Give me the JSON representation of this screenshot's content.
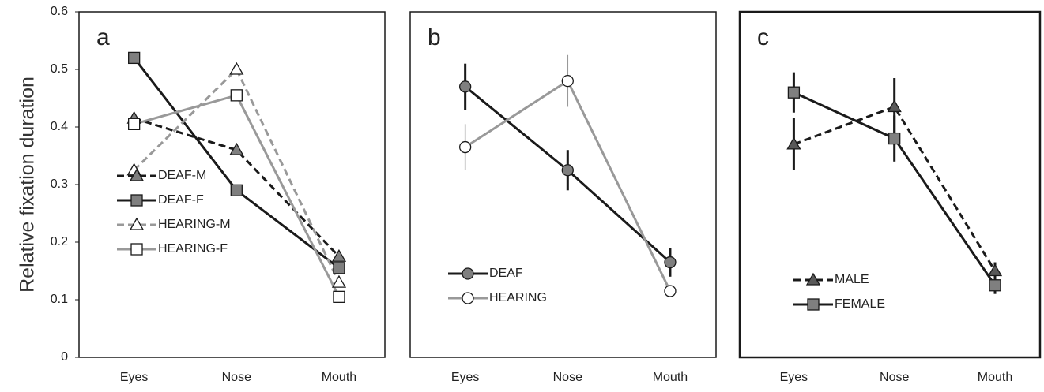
{
  "chart_data": [
    {
      "type": "line",
      "label": "a",
      "ylabel": "Relative fixation duration",
      "categories": [
        "Eyes",
        "Nose",
        "Mouth"
      ],
      "ylim": [
        0,
        0.6
      ],
      "yticks": [
        0,
        0.1,
        0.2,
        0.3,
        0.4,
        0.5,
        0.6
      ],
      "legend": "lower left",
      "series": [
        {
          "name": "DEAF-M",
          "color": "#1a1a1a",
          "dashed": true,
          "marker": "triangle",
          "marker_fill": "#7f7f7f",
          "values": [
            0.415,
            0.36,
            0.175
          ]
        },
        {
          "name": "DEAF-F",
          "color": "#1a1a1a",
          "dashed": false,
          "marker": "square",
          "marker_fill": "#7f7f7f",
          "values": [
            0.52,
            0.29,
            0.155
          ]
        },
        {
          "name": "HEARING-M",
          "color": "#999999",
          "dashed": true,
          "marker": "triangle",
          "marker_fill": "#ffffff",
          "values": [
            0.325,
            0.5,
            0.13
          ]
        },
        {
          "name": "HEARING-F",
          "color": "#999999",
          "dashed": false,
          "marker": "square",
          "marker_fill": "#ffffff",
          "values": [
            0.405,
            0.455,
            0.105
          ]
        }
      ]
    },
    {
      "type": "line",
      "label": "b",
      "categories": [
        "Eyes",
        "Nose",
        "Mouth"
      ],
      "ylim": [
        0,
        0.6
      ],
      "legend": "center left",
      "series": [
        {
          "name": "DEAF",
          "color": "#1a1a1a",
          "dashed": false,
          "marker": "circle",
          "marker_fill": "#7f7f7f",
          "values": [
            0.47,
            0.325,
            0.165
          ],
          "errors": [
            0.04,
            0.035,
            0.025
          ]
        },
        {
          "name": "HEARING",
          "color": "#999999",
          "dashed": false,
          "marker": "circle",
          "marker_fill": "#ffffff",
          "values": [
            0.365,
            0.48,
            0.115
          ],
          "errors": [
            0.04,
            0.045,
            0.01
          ]
        }
      ]
    },
    {
      "type": "line",
      "label": "c",
      "categories": [
        "Eyes",
        "Nose",
        "Mouth"
      ],
      "ylim": [
        0,
        0.6
      ],
      "legend": "lower left",
      "series": [
        {
          "name": "MALE",
          "color": "#1a1a1a",
          "dashed": true,
          "marker": "triangle",
          "marker_fill": "#595959",
          "values": [
            0.37,
            0.435,
            0.15
          ],
          "errors": [
            0.045,
            0.05,
            0.015
          ]
        },
        {
          "name": "FEMALE",
          "color": "#1a1a1a",
          "dashed": false,
          "marker": "square",
          "marker_fill": "#7f7f7f",
          "values": [
            0.46,
            0.38,
            0.125
          ],
          "errors": [
            0.035,
            0.04,
            0.015
          ]
        }
      ]
    }
  ]
}
